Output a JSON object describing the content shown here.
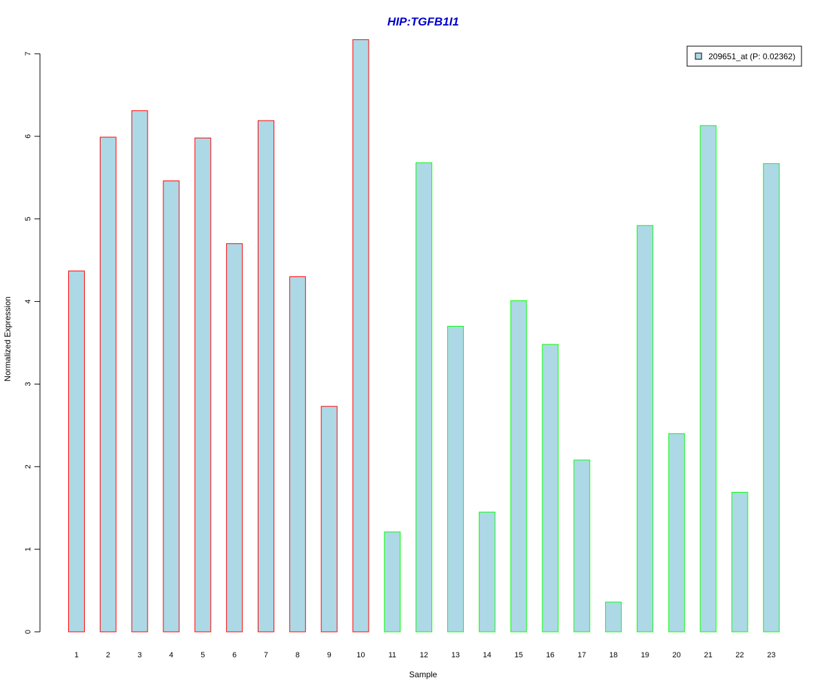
{
  "chart_data": {
    "type": "bar",
    "title": "HIP:TGFB1I1",
    "xlabel": "Sample",
    "ylabel": "Normalized Expression",
    "categories": [
      "1",
      "2",
      "3",
      "4",
      "5",
      "6",
      "7",
      "8",
      "9",
      "10",
      "11",
      "12",
      "13",
      "14",
      "15",
      "16",
      "17",
      "18",
      "19",
      "20",
      "21",
      "22",
      "23"
    ],
    "values": [
      4.37,
      5.99,
      6.31,
      5.46,
      5.98,
      4.7,
      6.19,
      4.3,
      2.73,
      7.17,
      1.21,
      5.68,
      3.7,
      1.45,
      4.01,
      3.48,
      2.08,
      0.36,
      4.92,
      2.4,
      6.13,
      1.69,
      5.67
    ],
    "groups": [
      1,
      1,
      1,
      1,
      1,
      1,
      1,
      1,
      1,
      1,
      2,
      2,
      2,
      2,
      2,
      2,
      2,
      2,
      2,
      2,
      2,
      2,
      2
    ],
    "ylim": [
      0,
      7.17
    ],
    "yticks": [
      0,
      1,
      2,
      3,
      4,
      5,
      6,
      7
    ],
    "grid": false,
    "legend": {
      "position": "top-right",
      "label": "209651_at (P: 0.02362)"
    },
    "colors": {
      "title": "#0000cc",
      "bar_fill": "#add8e6",
      "group1_border": "#ff0000",
      "group2_border": "#00ff00",
      "axis": "#000000"
    }
  }
}
